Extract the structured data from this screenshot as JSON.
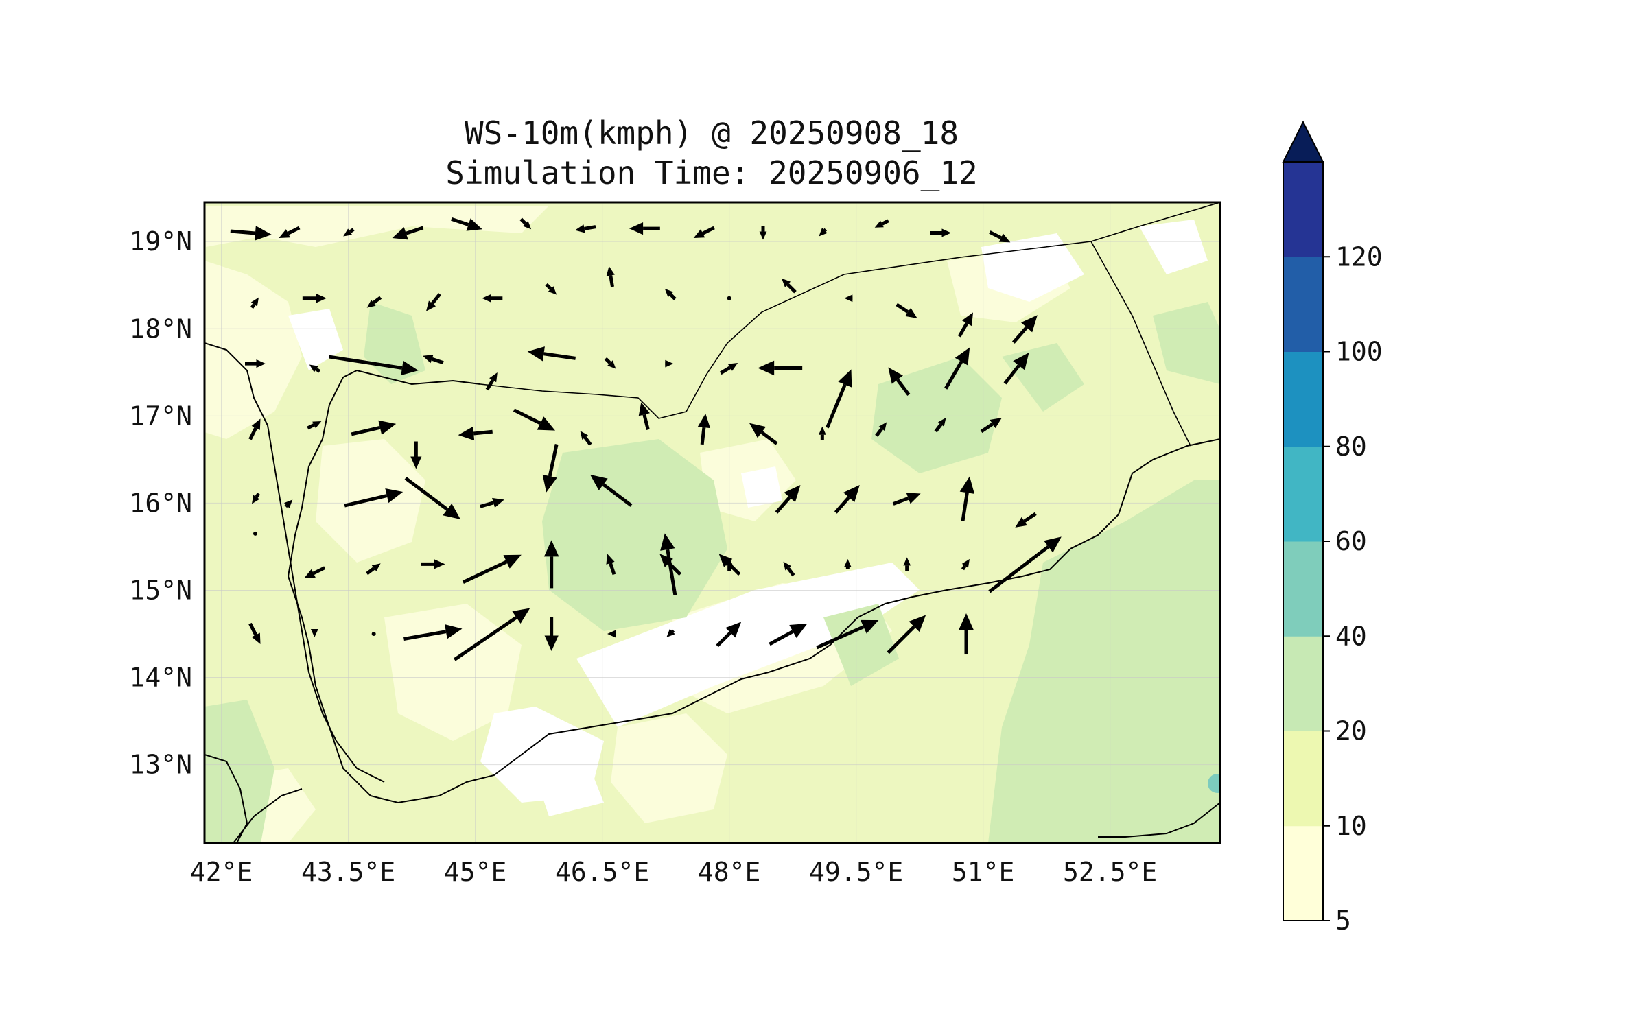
{
  "title": {
    "line1": "WS-10m(kmph) @ 20250908_18",
    "line2": "Simulation Time: 20250906_12"
  },
  "map": {
    "lon_range": [
      41.8,
      53.8
    ],
    "lat_range": [
      12.1,
      19.45
    ],
    "lon_ticks": [
      {
        "value": 42.0,
        "label": "42°E"
      },
      {
        "value": 43.5,
        "label": "43.5°E"
      },
      {
        "value": 45.0,
        "label": "45°E"
      },
      {
        "value": 46.5,
        "label": "46.5°E"
      },
      {
        "value": 48.0,
        "label": "48°E"
      },
      {
        "value": 49.5,
        "label": "49.5°E"
      },
      {
        "value": 51.0,
        "label": "51°E"
      },
      {
        "value": 52.5,
        "label": "52.5°E"
      }
    ],
    "lat_ticks": [
      {
        "value": 19,
        "label": "19°N"
      },
      {
        "value": 18,
        "label": "18°N"
      },
      {
        "value": 17,
        "label": "17°N"
      },
      {
        "value": 16,
        "label": "16°N"
      },
      {
        "value": 15,
        "label": "15°N"
      },
      {
        "value": 14,
        "label": "14°N"
      },
      {
        "value": 13,
        "label": "13°N"
      }
    ],
    "gridlines": true,
    "background_color": "#edf7c0",
    "light_patch_color": "#fbfddb",
    "white_patch_color": "#ffffff",
    "medium_patch_color": "#d0ecb4",
    "teal_patch_color": "#7ccbbe"
  },
  "colorbar": {
    "levels": [
      5,
      10,
      20,
      40,
      60,
      80,
      100,
      120
    ],
    "labels": [
      "5",
      "10",
      "20",
      "40",
      "60",
      "80",
      "100",
      "120"
    ],
    "colors": [
      "#ffffd9",
      "#edf8b1",
      "#c7e9b4",
      "#7fcdbb",
      "#41b6c4",
      "#1d91c0",
      "#225ea8",
      "#253494"
    ],
    "extend_color": "#081d58",
    "extend": "max"
  },
  "chart_data": {
    "type": "heatmap",
    "variable": "WS-10m",
    "units": "kmph",
    "xlabel": "",
    "ylabel": "",
    "xlim": [
      41.8,
      53.8
    ],
    "ylim": [
      12.1,
      19.45
    ],
    "wind_vectors": [
      {
        "lon": 42.35,
        "lat": 19.1,
        "u": 6,
        "v": -0.5
      },
      {
        "lon": 42.8,
        "lat": 19.1,
        "u": -3,
        "v": -1.5
      },
      {
        "lon": 43.5,
        "lat": 19.1,
        "u": -1.5,
        "v": -1
      },
      {
        "lon": 44.2,
        "lat": 19.1,
        "u": -4.5,
        "v": -1.5
      },
      {
        "lon": 44.9,
        "lat": 19.2,
        "u": 4.5,
        "v": -1.5
      },
      {
        "lon": 45.6,
        "lat": 19.2,
        "u": 1.5,
        "v": -1.5
      },
      {
        "lon": 46.3,
        "lat": 19.15,
        "u": -3,
        "v": -0.5
      },
      {
        "lon": 47.0,
        "lat": 19.15,
        "u": -4.5,
        "v": 0
      },
      {
        "lon": 47.7,
        "lat": 19.1,
        "u": -3,
        "v": -1.5
      },
      {
        "lon": 48.4,
        "lat": 19.1,
        "u": 0,
        "v": -2
      },
      {
        "lon": 49.1,
        "lat": 19.1,
        "u": -1,
        "v": -1
      },
      {
        "lon": 49.8,
        "lat": 19.2,
        "u": -2,
        "v": -1
      },
      {
        "lon": 50.5,
        "lat": 19.1,
        "u": 3,
        "v": 0
      },
      {
        "lon": 51.2,
        "lat": 19.05,
        "u": 3,
        "v": -1.5
      },
      {
        "lon": 42.4,
        "lat": 18.3,
        "u": 1,
        "v": 1.5
      },
      {
        "lon": 43.1,
        "lat": 18.35,
        "u": 3.5,
        "v": 0
      },
      {
        "lon": 43.8,
        "lat": 18.3,
        "u": -2,
        "v": -1.5
      },
      {
        "lon": 44.5,
        "lat": 18.3,
        "u": -2,
        "v": -2.5
      },
      {
        "lon": 45.2,
        "lat": 18.35,
        "u": -3,
        "v": 0
      },
      {
        "lon": 45.9,
        "lat": 18.45,
        "u": 1.5,
        "v": -1.5
      },
      {
        "lon": 46.6,
        "lat": 18.6,
        "u": -0.5,
        "v": 3
      },
      {
        "lon": 47.3,
        "lat": 18.4,
        "u": -1.5,
        "v": 1.5
      },
      {
        "lon": 48.0,
        "lat": 18.35,
        "u": 0,
        "v": 0
      },
      {
        "lon": 48.7,
        "lat": 18.5,
        "u": -2,
        "v": 2
      },
      {
        "lon": 49.4,
        "lat": 18.35,
        "u": -1,
        "v": 0
      },
      {
        "lon": 50.1,
        "lat": 18.2,
        "u": 3,
        "v": -2
      },
      {
        "lon": 50.8,
        "lat": 18.05,
        "u": 2,
        "v": 3.5
      },
      {
        "lon": 51.5,
        "lat": 18.0,
        "u": 3.5,
        "v": 4
      },
      {
        "lon": 42.4,
        "lat": 17.6,
        "u": 3,
        "v": 0
      },
      {
        "lon": 43.1,
        "lat": 17.55,
        "u": -1.5,
        "v": 1
      },
      {
        "lon": 43.8,
        "lat": 17.6,
        "u": 13,
        "v": -2
      },
      {
        "lon": 44.5,
        "lat": 17.65,
        "u": -3,
        "v": 1
      },
      {
        "lon": 45.2,
        "lat": 17.4,
        "u": 1.5,
        "v": 2.5
      },
      {
        "lon": 45.9,
        "lat": 17.7,
        "u": -7,
        "v": 1
      },
      {
        "lon": 46.6,
        "lat": 17.6,
        "u": 1.5,
        "v": -1.5
      },
      {
        "lon": 47.3,
        "lat": 17.6,
        "u": 1,
        "v": 0
      },
      {
        "lon": 48.0,
        "lat": 17.55,
        "u": 2.5,
        "v": 1.5
      },
      {
        "lon": 48.6,
        "lat": 17.55,
        "u": -6.5,
        "v": 0
      },
      {
        "lon": 49.3,
        "lat": 17.2,
        "u": 3.5,
        "v": 8.5
      },
      {
        "lon": 50.0,
        "lat": 17.4,
        "u": -3,
        "v": 4
      },
      {
        "lon": 50.7,
        "lat": 17.55,
        "u": 3.5,
        "v": 6
      },
      {
        "lon": 51.4,
        "lat": 17.55,
        "u": 3.5,
        "v": 4.5
      },
      {
        "lon": 42.4,
        "lat": 16.85,
        "u": 1.5,
        "v": 3
      },
      {
        "lon": 43.1,
        "lat": 16.9,
        "u": 2,
        "v": 1
      },
      {
        "lon": 43.8,
        "lat": 16.85,
        "u": 6.5,
        "v": 1.5
      },
      {
        "lon": 44.3,
        "lat": 16.55,
        "u": 0,
        "v": -4
      },
      {
        "lon": 45.0,
        "lat": 16.8,
        "u": -5,
        "v": -0.5
      },
      {
        "lon": 45.7,
        "lat": 16.95,
        "u": 6,
        "v": -3
      },
      {
        "lon": 46.3,
        "lat": 16.75,
        "u": -1.5,
        "v": 2
      },
      {
        "lon": 47.0,
        "lat": 17.0,
        "u": -1,
        "v": 4
      },
      {
        "lon": 47.7,
        "lat": 16.85,
        "u": 0.5,
        "v": 4.5
      },
      {
        "lon": 48.4,
        "lat": 16.8,
        "u": -4,
        "v": 3
      },
      {
        "lon": 49.1,
        "lat": 16.8,
        "u": 0,
        "v": 2
      },
      {
        "lon": 49.8,
        "lat": 16.85,
        "u": 1.5,
        "v": 2
      },
      {
        "lon": 50.5,
        "lat": 16.9,
        "u": 1.5,
        "v": 2
      },
      {
        "lon": 51.1,
        "lat": 16.9,
        "u": 3,
        "v": 2
      },
      {
        "lon": 42.4,
        "lat": 16.05,
        "u": -1,
        "v": -1.5
      },
      {
        "lon": 42.8,
        "lat": 16.0,
        "u": 1,
        "v": 1
      },
      {
        "lon": 43.8,
        "lat": 16.05,
        "u": 8.5,
        "v": 2
      },
      {
        "lon": 44.5,
        "lat": 16.05,
        "u": 8,
        "v": -6
      },
      {
        "lon": 45.2,
        "lat": 16.0,
        "u": 3.5,
        "v": 1
      },
      {
        "lon": 45.9,
        "lat": 16.4,
        "u": -1.5,
        "v": -7
      },
      {
        "lon": 46.6,
        "lat": 16.15,
        "u": -6,
        "v": 4.5
      },
      {
        "lon": 47.3,
        "lat": 15.3,
        "u": -1.5,
        "v": 9
      },
      {
        "lon": 48.0,
        "lat": 15.3,
        "u": -3,
        "v": 3
      },
      {
        "lon": 48.7,
        "lat": 16.05,
        "u": 3.5,
        "v": 4
      },
      {
        "lon": 49.4,
        "lat": 16.05,
        "u": 3.5,
        "v": 4
      },
      {
        "lon": 50.1,
        "lat": 16.05,
        "u": 4,
        "v": 1.5
      },
      {
        "lon": 50.8,
        "lat": 16.05,
        "u": 1,
        "v": 6.5
      },
      {
        "lon": 51.5,
        "lat": 15.8,
        "u": -3,
        "v": -2
      },
      {
        "lon": 42.4,
        "lat": 15.65,
        "u": 0,
        "v": 0
      },
      {
        "lon": 43.1,
        "lat": 15.2,
        "u": -3,
        "v": -1.5
      },
      {
        "lon": 43.8,
        "lat": 15.25,
        "u": 2,
        "v": 1.5
      },
      {
        "lon": 44.5,
        "lat": 15.3,
        "u": 3.5,
        "v": 0
      },
      {
        "lon": 45.2,
        "lat": 15.25,
        "u": 8.5,
        "v": 4
      },
      {
        "lon": 45.9,
        "lat": 15.3,
        "u": 0,
        "v": 7
      },
      {
        "lon": 46.6,
        "lat": 15.3,
        "u": -1,
        "v": 3
      },
      {
        "lon": 47.3,
        "lat": 15.3,
        "u": -3,
        "v": 3
      },
      {
        "lon": 48.0,
        "lat": 15.3,
        "u": 0,
        "v": 2
      },
      {
        "lon": 48.7,
        "lat": 15.25,
        "u": -1.5,
        "v": 2
      },
      {
        "lon": 49.4,
        "lat": 15.3,
        "u": 0,
        "v": 1.5
      },
      {
        "lon": 50.1,
        "lat": 15.3,
        "u": 0,
        "v": 2
      },
      {
        "lon": 50.8,
        "lat": 15.3,
        "u": 1,
        "v": 1.5
      },
      {
        "lon": 51.5,
        "lat": 15.3,
        "u": 10.5,
        "v": 8
      },
      {
        "lon": 42.4,
        "lat": 14.5,
        "u": 1.5,
        "v": -3
      },
      {
        "lon": 43.1,
        "lat": 14.5,
        "u": 0,
        "v": -1
      },
      {
        "lon": 43.8,
        "lat": 14.5,
        "u": 0,
        "v": 0
      },
      {
        "lon": 44.5,
        "lat": 14.5,
        "u": 8.5,
        "v": 1.5
      },
      {
        "lon": 45.2,
        "lat": 14.5,
        "u": 11,
        "v": 7.5
      },
      {
        "lon": 45.9,
        "lat": 14.5,
        "u": 0,
        "v": -5
      },
      {
        "lon": 46.6,
        "lat": 14.5,
        "u": -1,
        "v": 0
      },
      {
        "lon": 47.3,
        "lat": 14.5,
        "u": -1,
        "v": -1
      },
      {
        "lon": 48.0,
        "lat": 14.5,
        "u": 3.5,
        "v": 3.5
      },
      {
        "lon": 48.7,
        "lat": 14.5,
        "u": 5.5,
        "v": 3
      },
      {
        "lon": 49.4,
        "lat": 14.5,
        "u": 9,
        "v": 4
      },
      {
        "lon": 50.1,
        "lat": 14.5,
        "u": 5.5,
        "v": 5.5
      },
      {
        "lon": 50.8,
        "lat": 14.5,
        "u": 0,
        "v": 6
      }
    ]
  }
}
